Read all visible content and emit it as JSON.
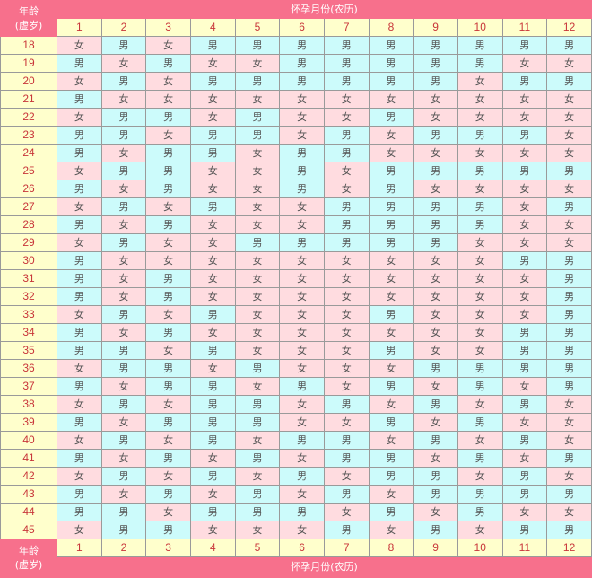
{
  "header": {
    "age_label_line1": "年龄",
    "age_label_line2": "(虚岁)",
    "month_title": "怀孕月份(农历)"
  },
  "months": [
    "1",
    "2",
    "3",
    "4",
    "5",
    "6",
    "7",
    "8",
    "9",
    "10",
    "11",
    "12"
  ],
  "legend_colors": {
    "男": "#ccfbfb",
    "女": "#ffdce0",
    "header": "#f7708c",
    "number_bg": "#ffffcc",
    "number_text": "#c8363a"
  },
  "rows": [
    {
      "age": "18",
      "values": [
        "女",
        "男",
        "女",
        "男",
        "男",
        "男",
        "男",
        "男",
        "男",
        "男",
        "男",
        "男"
      ]
    },
    {
      "age": "19",
      "values": [
        "男",
        "女",
        "男",
        "女",
        "女",
        "男",
        "男",
        "男",
        "男",
        "男",
        "女",
        "女"
      ]
    },
    {
      "age": "20",
      "values": [
        "女",
        "男",
        "女",
        "男",
        "男",
        "男",
        "男",
        "男",
        "男",
        "女",
        "男",
        "男"
      ]
    },
    {
      "age": "21",
      "values": [
        "男",
        "女",
        "女",
        "女",
        "女",
        "女",
        "女",
        "女",
        "女",
        "女",
        "女",
        "女"
      ]
    },
    {
      "age": "22",
      "values": [
        "女",
        "男",
        "男",
        "女",
        "男",
        "女",
        "女",
        "男",
        "女",
        "女",
        "女",
        "女"
      ]
    },
    {
      "age": "23",
      "values": [
        "男",
        "男",
        "女",
        "男",
        "男",
        "女",
        "男",
        "女",
        "男",
        "男",
        "男",
        "女"
      ]
    },
    {
      "age": "24",
      "values": [
        "男",
        "女",
        "男",
        "男",
        "女",
        "男",
        "男",
        "女",
        "女",
        "女",
        "女",
        "女"
      ]
    },
    {
      "age": "25",
      "values": [
        "女",
        "男",
        "男",
        "女",
        "女",
        "男",
        "女",
        "男",
        "男",
        "男",
        "男",
        "男"
      ]
    },
    {
      "age": "26",
      "values": [
        "男",
        "女",
        "男",
        "女",
        "女",
        "男",
        "女",
        "男",
        "女",
        "女",
        "女",
        "女"
      ]
    },
    {
      "age": "27",
      "values": [
        "女",
        "男",
        "女",
        "男",
        "女",
        "女",
        "男",
        "男",
        "男",
        "男",
        "女",
        "男"
      ]
    },
    {
      "age": "28",
      "values": [
        "男",
        "女",
        "男",
        "女",
        "女",
        "女",
        "男",
        "男",
        "男",
        "男",
        "女",
        "女"
      ]
    },
    {
      "age": "29",
      "values": [
        "女",
        "男",
        "女",
        "女",
        "男",
        "男",
        "男",
        "男",
        "男",
        "女",
        "女",
        "女"
      ]
    },
    {
      "age": "30",
      "values": [
        "男",
        "女",
        "女",
        "女",
        "女",
        "女",
        "女",
        "女",
        "女",
        "女",
        "男",
        "男"
      ]
    },
    {
      "age": "31",
      "values": [
        "男",
        "女",
        "男",
        "女",
        "女",
        "女",
        "女",
        "女",
        "女",
        "女",
        "女",
        "男"
      ]
    },
    {
      "age": "32",
      "values": [
        "男",
        "女",
        "男",
        "女",
        "女",
        "女",
        "女",
        "女",
        "女",
        "女",
        "女",
        "男"
      ]
    },
    {
      "age": "33",
      "values": [
        "女",
        "男",
        "女",
        "男",
        "女",
        "女",
        "女",
        "男",
        "女",
        "女",
        "女",
        "男"
      ]
    },
    {
      "age": "34",
      "values": [
        "男",
        "女",
        "男",
        "女",
        "女",
        "女",
        "女",
        "女",
        "女",
        "女",
        "男",
        "男"
      ]
    },
    {
      "age": "35",
      "values": [
        "男",
        "男",
        "女",
        "男",
        "女",
        "女",
        "女",
        "男",
        "女",
        "女",
        "男",
        "男"
      ]
    },
    {
      "age": "36",
      "values": [
        "女",
        "男",
        "男",
        "女",
        "男",
        "女",
        "女",
        "女",
        "男",
        "男",
        "男",
        "男"
      ]
    },
    {
      "age": "37",
      "values": [
        "男",
        "女",
        "男",
        "男",
        "女",
        "男",
        "女",
        "男",
        "女",
        "男",
        "女",
        "男"
      ]
    },
    {
      "age": "38",
      "values": [
        "女",
        "男",
        "女",
        "男",
        "男",
        "女",
        "男",
        "女",
        "男",
        "女",
        "男",
        "女"
      ]
    },
    {
      "age": "39",
      "values": [
        "男",
        "女",
        "男",
        "男",
        "男",
        "女",
        "女",
        "男",
        "女",
        "男",
        "女",
        "女"
      ]
    },
    {
      "age": "40",
      "values": [
        "女",
        "男",
        "女",
        "男",
        "女",
        "男",
        "男",
        "女",
        "男",
        "女",
        "男",
        "女"
      ]
    },
    {
      "age": "41",
      "values": [
        "男",
        "女",
        "男",
        "女",
        "男",
        "女",
        "男",
        "男",
        "女",
        "男",
        "女",
        "男"
      ]
    },
    {
      "age": "42",
      "values": [
        "女",
        "男",
        "女",
        "男",
        "女",
        "男",
        "女",
        "男",
        "男",
        "女",
        "男",
        "女"
      ]
    },
    {
      "age": "43",
      "values": [
        "男",
        "女",
        "男",
        "女",
        "男",
        "女",
        "男",
        "女",
        "男",
        "男",
        "男",
        "男"
      ]
    },
    {
      "age": "44",
      "values": [
        "男",
        "男",
        "女",
        "男",
        "男",
        "男",
        "女",
        "男",
        "女",
        "男",
        "女",
        "女"
      ]
    },
    {
      "age": "45",
      "values": [
        "女",
        "男",
        "男",
        "女",
        "女",
        "女",
        "男",
        "女",
        "男",
        "女",
        "男",
        "男"
      ]
    }
  ]
}
